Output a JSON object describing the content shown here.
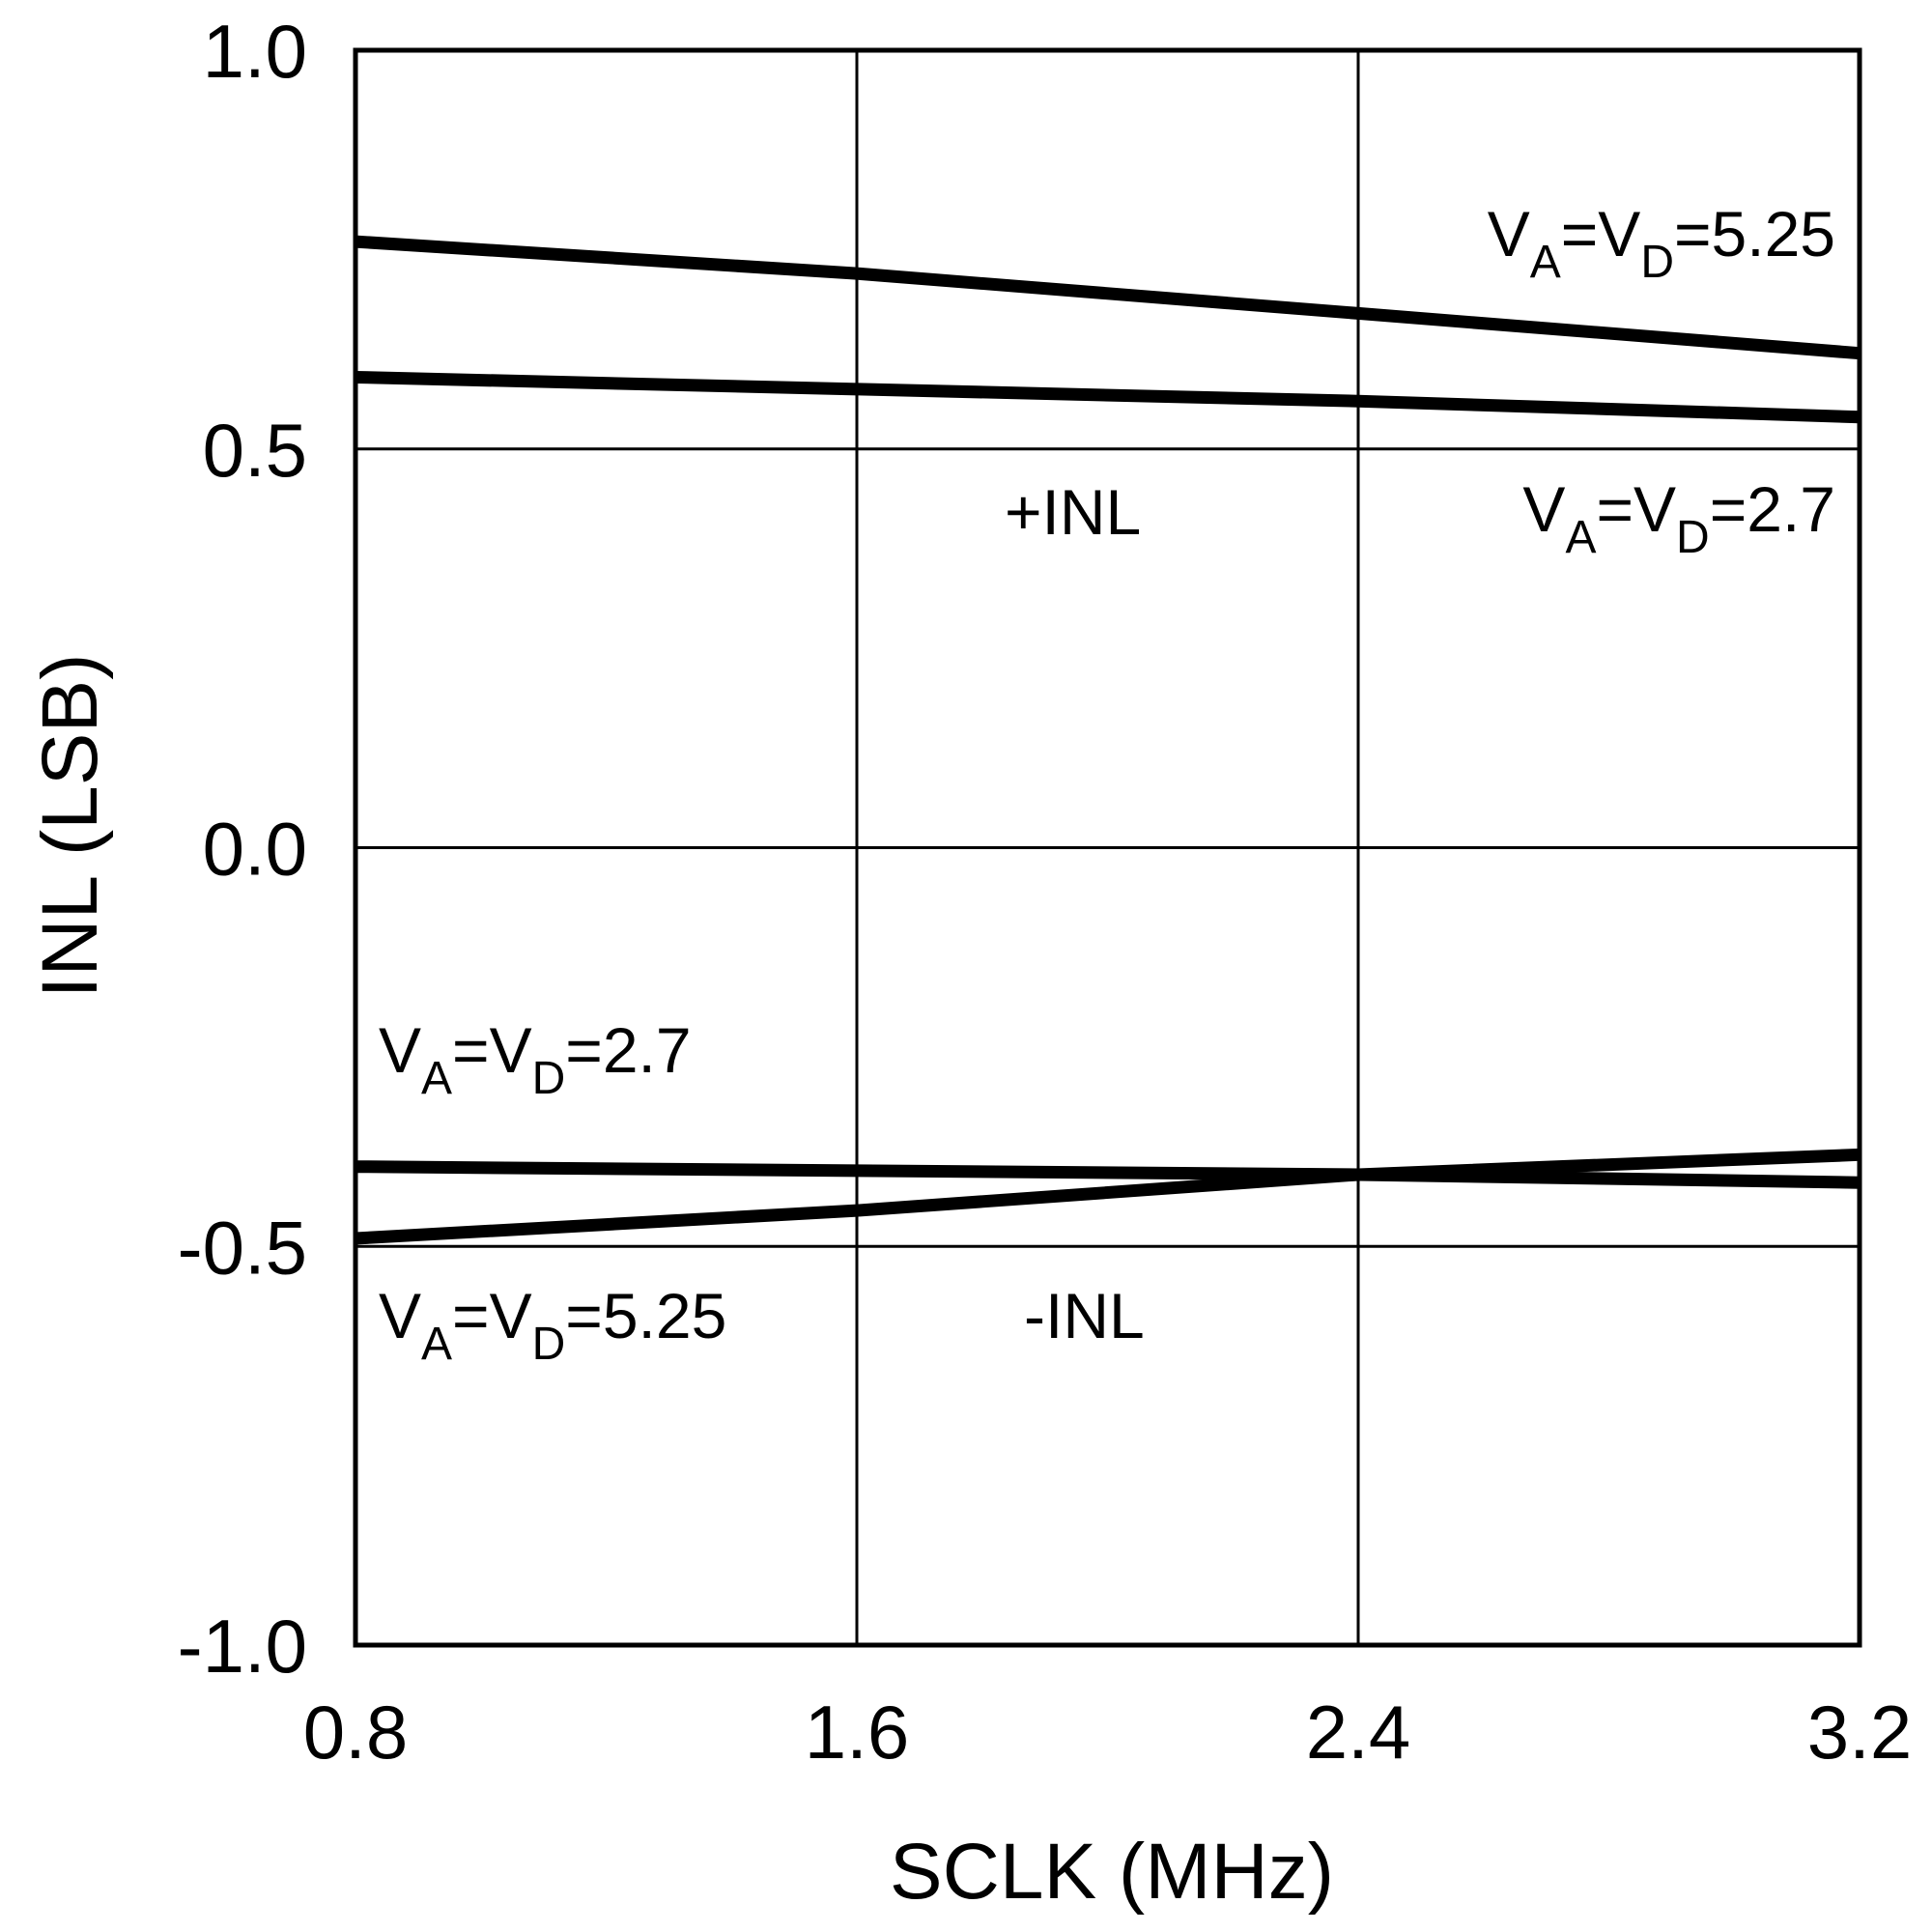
{
  "chart_data": {
    "type": "line",
    "title": "",
    "xlabel": "SCLK (MHz)",
    "ylabel": "INL (LSB)",
    "xlim": [
      0.8,
      3.2
    ],
    "ylim": [
      -1.0,
      1.0
    ],
    "xticks": [
      0.8,
      1.6,
      2.4,
      3.2
    ],
    "xtick_labels": [
      "0.8",
      "1.6",
      "2.4",
      "3.2"
    ],
    "yticks": [
      -1.0,
      -0.5,
      0.0,
      0.5,
      1.0
    ],
    "ytick_labels": [
      "-1.0",
      "-0.5",
      "0.0",
      "0.5",
      "1.0"
    ],
    "grid": true,
    "legend": "none",
    "line_color": "#000000",
    "series": [
      {
        "x": [
          0.8,
          1.6,
          2.4,
          3.2
        ],
        "y": [
          0.76,
          0.72,
          0.67,
          0.62
        ]
      },
      {
        "x": [
          0.8,
          1.6,
          2.4,
          3.2
        ],
        "y": [
          0.59,
          0.575,
          0.56,
          0.54
        ]
      },
      {
        "x": [
          0.8,
          1.6,
          2.4,
          3.2
        ],
        "y": [
          -0.4,
          -0.405,
          -0.41,
          -0.42
        ]
      },
      {
        "x": [
          0.8,
          1.6,
          2.4,
          3.2
        ],
        "y": [
          -0.49,
          -0.455,
          -0.41,
          -0.385
        ]
      }
    ],
    "annotations": [
      {
        "name": "upper-5v25",
        "parts": [
          "V",
          "A",
          "=V",
          "D",
          "=5.25"
        ]
      },
      {
        "name": "upper-2v7",
        "parts": [
          "V",
          "A",
          "=V",
          "D",
          "=2.7"
        ]
      },
      {
        "name": "plus-inl",
        "text": "+INL"
      },
      {
        "name": "lower-2v7",
        "parts": [
          "V",
          "A",
          "=V",
          "D",
          "=2.7"
        ]
      },
      {
        "name": "lower-5v25",
        "parts": [
          "V",
          "A",
          "=V",
          "D",
          "=5.25"
        ]
      },
      {
        "name": "minus-inl",
        "text": "-INL"
      }
    ]
  }
}
